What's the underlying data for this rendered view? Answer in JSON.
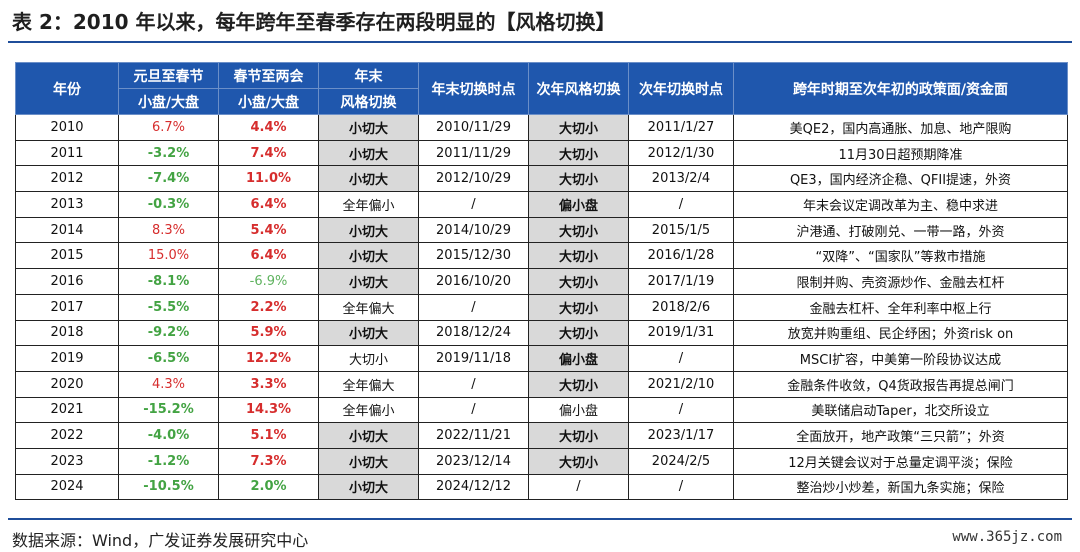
{
  "title": "表 2：2010 年以来，每年跨年至春季存在两段明显的【风格切换】",
  "headers": {
    "year": "年份",
    "yd_to_sf_top": "元旦至春节",
    "yd_to_sf_sub": "小盘/大盘",
    "sf_to_lh_top": "春节至两会",
    "sf_to_lh_sub": "小盘/大盘",
    "ye_style_top": "年末",
    "ye_style_sub": "风格切换",
    "ye_switch_time": "年末切换时点",
    "ny_style": "次年风格切换",
    "ny_switch_time": "次年切换时点",
    "policy": "跨年时期至次年初的政策面/资金面"
  },
  "rows": [
    {
      "year": "2010",
      "a": "6.7%",
      "ac": "red",
      "b": "4.4%",
      "bc": "bold-red",
      "c": "小切大",
      "cs": true,
      "d": "2010/11/29",
      "e": "大切小",
      "es": true,
      "f": "2011/1/27",
      "g": "美QE2，国内高通胀、加息、地产限购"
    },
    {
      "year": "2011",
      "a": "-3.2%",
      "ac": "bold-green",
      "b": "7.4%",
      "bc": "bold-red",
      "c": "小切大",
      "cs": true,
      "d": "2011/11/29",
      "e": "大切小",
      "es": true,
      "f": "2012/1/30",
      "g": "11月30日超预期降准"
    },
    {
      "year": "2012",
      "a": "-7.4%",
      "ac": "bold-green",
      "b": "11.0%",
      "bc": "bold-red",
      "c": "小切大",
      "cs": true,
      "d": "2012/10/29",
      "e": "大切小",
      "es": true,
      "f": "2013/2/4",
      "g": "QE3，国内经济企稳、QFII提速，外资"
    },
    {
      "year": "2013",
      "a": "-0.3%",
      "ac": "bold-green",
      "b": "6.4%",
      "bc": "bold-red",
      "c": "全年偏小",
      "cs": false,
      "d": "/",
      "e": "偏小盘",
      "es": true,
      "f": "/",
      "g": "年末会议定调改革为主、稳中求进"
    },
    {
      "year": "2014",
      "a": "8.3%",
      "ac": "red",
      "b": "5.4%",
      "bc": "bold-red",
      "c": "小切大",
      "cs": true,
      "d": "2014/10/29",
      "e": "大切小",
      "es": true,
      "f": "2015/1/5",
      "g": "沪港通、打破刚兑、一带一路，外资"
    },
    {
      "year": "2015",
      "a": "15.0%",
      "ac": "red",
      "b": "6.4%",
      "bc": "bold-red",
      "c": "小切大",
      "cs": true,
      "d": "2015/12/30",
      "e": "大切小",
      "es": true,
      "f": "2016/1/28",
      "g": "“双降”、“国家队”等救市措施"
    },
    {
      "year": "2016",
      "a": "-8.1%",
      "ac": "bold-green",
      "b": "-6.9%",
      "bc": "light-green",
      "c": "小切大",
      "cs": true,
      "d": "2016/10/20",
      "e": "大切小",
      "es": true,
      "f": "2017/1/19",
      "g": "限制并购、壳资源炒作、金融去杠杆"
    },
    {
      "year": "2017",
      "a": "-5.5%",
      "ac": "bold-green",
      "b": "2.2%",
      "bc": "bold-red",
      "c": "全年偏大",
      "cs": false,
      "d": "/",
      "e": "大切小",
      "es": true,
      "f": "2018/2/6",
      "g": "金融去杠杆、全年利率中枢上行"
    },
    {
      "year": "2018",
      "a": "-9.2%",
      "ac": "bold-green",
      "b": "5.9%",
      "bc": "bold-red",
      "c": "小切大",
      "cs": true,
      "d": "2018/12/24",
      "e": "大切小",
      "es": true,
      "f": "2019/1/31",
      "g": "放宽并购重组、民企纾困；外资risk on"
    },
    {
      "year": "2019",
      "a": "-6.5%",
      "ac": "bold-green",
      "b": "12.2%",
      "bc": "bold-red",
      "c": "大切小",
      "cs": false,
      "d": "2019/11/18",
      "e": "偏小盘",
      "es": true,
      "f": "/",
      "g": "MSCI扩容，中美第一阶段协议达成"
    },
    {
      "year": "2020",
      "a": "4.3%",
      "ac": "red",
      "b": "3.3%",
      "bc": "bold-red",
      "c": "全年偏大",
      "cs": false,
      "d": "/",
      "e": "大切小",
      "es": true,
      "f": "2021/2/10",
      "g": "金融条件收敛，Q4货政报告再提总闸门"
    },
    {
      "year": "2021",
      "a": "-15.2%",
      "ac": "bold-green",
      "b": "14.3%",
      "bc": "bold-red",
      "c": "全年偏小",
      "cs": false,
      "d": "/",
      "e": "偏小盘",
      "es": false,
      "f": "/",
      "g": "美联储启动Taper，北交所设立"
    },
    {
      "year": "2022",
      "a": "-4.0%",
      "ac": "bold-green",
      "b": "5.1%",
      "bc": "bold-red",
      "c": "小切大",
      "cs": true,
      "d": "2022/11/21",
      "e": "大切小",
      "es": true,
      "f": "2023/1/17",
      "g": "全面放开，地产政策“三只箭”；外资"
    },
    {
      "year": "2023",
      "a": "-1.2%",
      "ac": "bold-green",
      "b": "7.3%",
      "bc": "bold-red",
      "c": "小切大",
      "cs": true,
      "d": "2023/12/14",
      "e": "大切小",
      "es": true,
      "f": "2024/2/5",
      "g": "12月关键会议对于总量定调平淡；保险"
    },
    {
      "year": "2024",
      "a": "-10.5%",
      "ac": "bold-green",
      "b": "2.0%",
      "bc": "bold-green",
      "c": "小切大",
      "cs": true,
      "d": "2024/12/12",
      "e": "/",
      "es": false,
      "f": "/",
      "g": "整治炒小炒差，新国九条实施；保险"
    }
  ],
  "footer": {
    "source": "数据来源：Wind，广发证券发展研究中心",
    "watermark": "www.365jz.com"
  }
}
